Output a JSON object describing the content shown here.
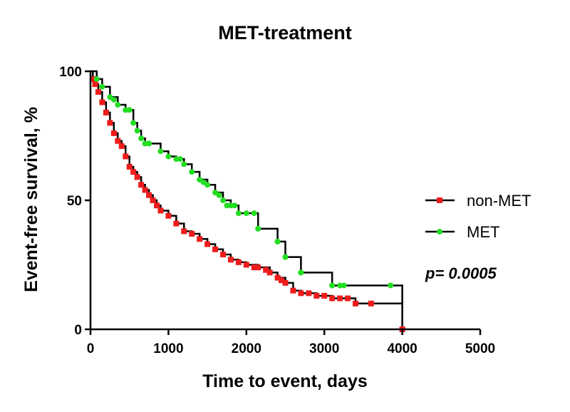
{
  "chart_data": {
    "type": "line",
    "subtype": "kaplan-meier",
    "title": "MET-treatment",
    "xlabel": "Time to event, days",
    "ylabel": "Event-free survival, %",
    "xlim": [
      0,
      5000
    ],
    "ylim": [
      0,
      100
    ],
    "xticks": [
      "0",
      "1000",
      "2000",
      "3000",
      "4000",
      "5000"
    ],
    "yticks": [
      "0",
      "50",
      "100"
    ],
    "grid": false,
    "legend_position": "right",
    "annotation": "p= 0.0005",
    "series": [
      {
        "name": "non-MET",
        "marker_color": "#ee1c1c",
        "line_color": "#000000",
        "steps": [
          [
            0,
            100
          ],
          [
            30,
            97
          ],
          [
            60,
            95
          ],
          [
            100,
            92
          ],
          [
            150,
            88
          ],
          [
            200,
            84
          ],
          [
            250,
            80
          ],
          [
            300,
            76
          ],
          [
            350,
            73
          ],
          [
            400,
            71
          ],
          [
            450,
            67
          ],
          [
            500,
            63
          ],
          [
            550,
            61
          ],
          [
            600,
            59
          ],
          [
            650,
            56
          ],
          [
            700,
            54
          ],
          [
            750,
            52
          ],
          [
            800,
            50
          ],
          [
            850,
            48
          ],
          [
            900,
            46
          ],
          [
            1000,
            44
          ],
          [
            1100,
            41
          ],
          [
            1200,
            38
          ],
          [
            1300,
            37
          ],
          [
            1400,
            35
          ],
          [
            1500,
            33
          ],
          [
            1600,
            31
          ],
          [
            1700,
            29
          ],
          [
            1800,
            27
          ],
          [
            1900,
            26
          ],
          [
            2000,
            25
          ],
          [
            2150,
            24
          ],
          [
            2300,
            22
          ],
          [
            2400,
            20
          ],
          [
            2500,
            18
          ],
          [
            2600,
            15
          ],
          [
            2700,
            14
          ],
          [
            2900,
            13
          ],
          [
            3100,
            12
          ],
          [
            3400,
            10
          ],
          [
            4000,
            0
          ]
        ],
        "censored": [
          [
            2100,
            24
          ],
          [
            2250,
            23
          ],
          [
            2450,
            19
          ],
          [
            2800,
            14
          ],
          [
            3000,
            13
          ],
          [
            3200,
            12
          ],
          [
            3300,
            12
          ],
          [
            3600,
            10
          ],
          [
            4000,
            0
          ]
        ]
      },
      {
        "name": "MET",
        "marker_color": "#22dd22",
        "line_color": "#000000",
        "steps": [
          [
            0,
            100
          ],
          [
            80,
            97
          ],
          [
            150,
            94
          ],
          [
            250,
            90
          ],
          [
            350,
            87
          ],
          [
            450,
            85
          ],
          [
            550,
            80
          ],
          [
            600,
            77
          ],
          [
            650,
            74
          ],
          [
            700,
            72
          ],
          [
            850,
            72
          ],
          [
            900,
            69
          ],
          [
            1000,
            67
          ],
          [
            1100,
            66
          ],
          [
            1200,
            64
          ],
          [
            1300,
            61
          ],
          [
            1400,
            58
          ],
          [
            1500,
            56
          ],
          [
            1600,
            53
          ],
          [
            1700,
            50
          ],
          [
            1800,
            48
          ],
          [
            1900,
            45
          ],
          [
            2150,
            39
          ],
          [
            2400,
            34
          ],
          [
            2500,
            28
          ],
          [
            2700,
            22
          ],
          [
            3100,
            17
          ],
          [
            3850,
            17
          ],
          [
            4000,
            10
          ]
        ],
        "censored": [
          [
            300,
            89
          ],
          [
            500,
            85
          ],
          [
            750,
            72
          ],
          [
            1150,
            66
          ],
          [
            1450,
            57
          ],
          [
            1650,
            52
          ],
          [
            1750,
            48
          ],
          [
            1850,
            48
          ],
          [
            2000,
            45
          ],
          [
            2100,
            45
          ],
          [
            2150,
            39
          ],
          [
            2400,
            34
          ],
          [
            2500,
            28
          ],
          [
            2700,
            22
          ],
          [
            3100,
            17
          ],
          [
            3200,
            17
          ],
          [
            3250,
            17
          ],
          [
            3850,
            17
          ]
        ]
      }
    ]
  }
}
